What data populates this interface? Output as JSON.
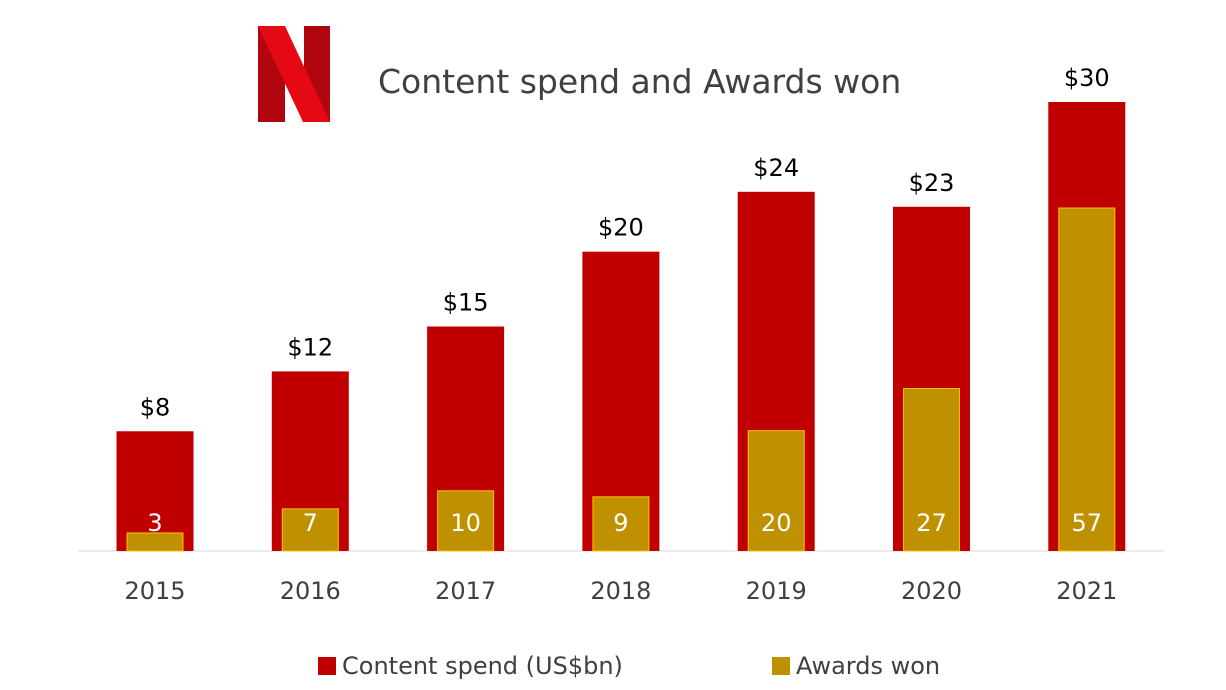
{
  "colors": {
    "spend": "#c00000",
    "awards": "#bf9000",
    "awards_outline": "#ffc000",
    "axis": "#d9d9d9",
    "logo_dark": "#b1060f",
    "logo_light": "#e50914"
  },
  "chart_data": {
    "type": "bar",
    "title": "Content spend and Awards won",
    "categories": [
      "2015",
      "2016",
      "2017",
      "2018",
      "2019",
      "2020",
      "2021"
    ],
    "series": [
      {
        "name": "Content spend (US$bn)",
        "values": [
          8,
          12,
          15,
          20,
          24,
          23,
          30
        ],
        "labels": [
          "$8",
          "$12",
          "$15",
          "$20",
          "$24",
          "$23",
          "$30"
        ]
      },
      {
        "name": "Awards won",
        "values": [
          3,
          7,
          10,
          9,
          20,
          27,
          57
        ],
        "labels": [
          "3",
          "7",
          "10",
          "9",
          "20",
          "27",
          "57"
        ]
      }
    ],
    "grid": false,
    "legend_position": "bottom"
  }
}
